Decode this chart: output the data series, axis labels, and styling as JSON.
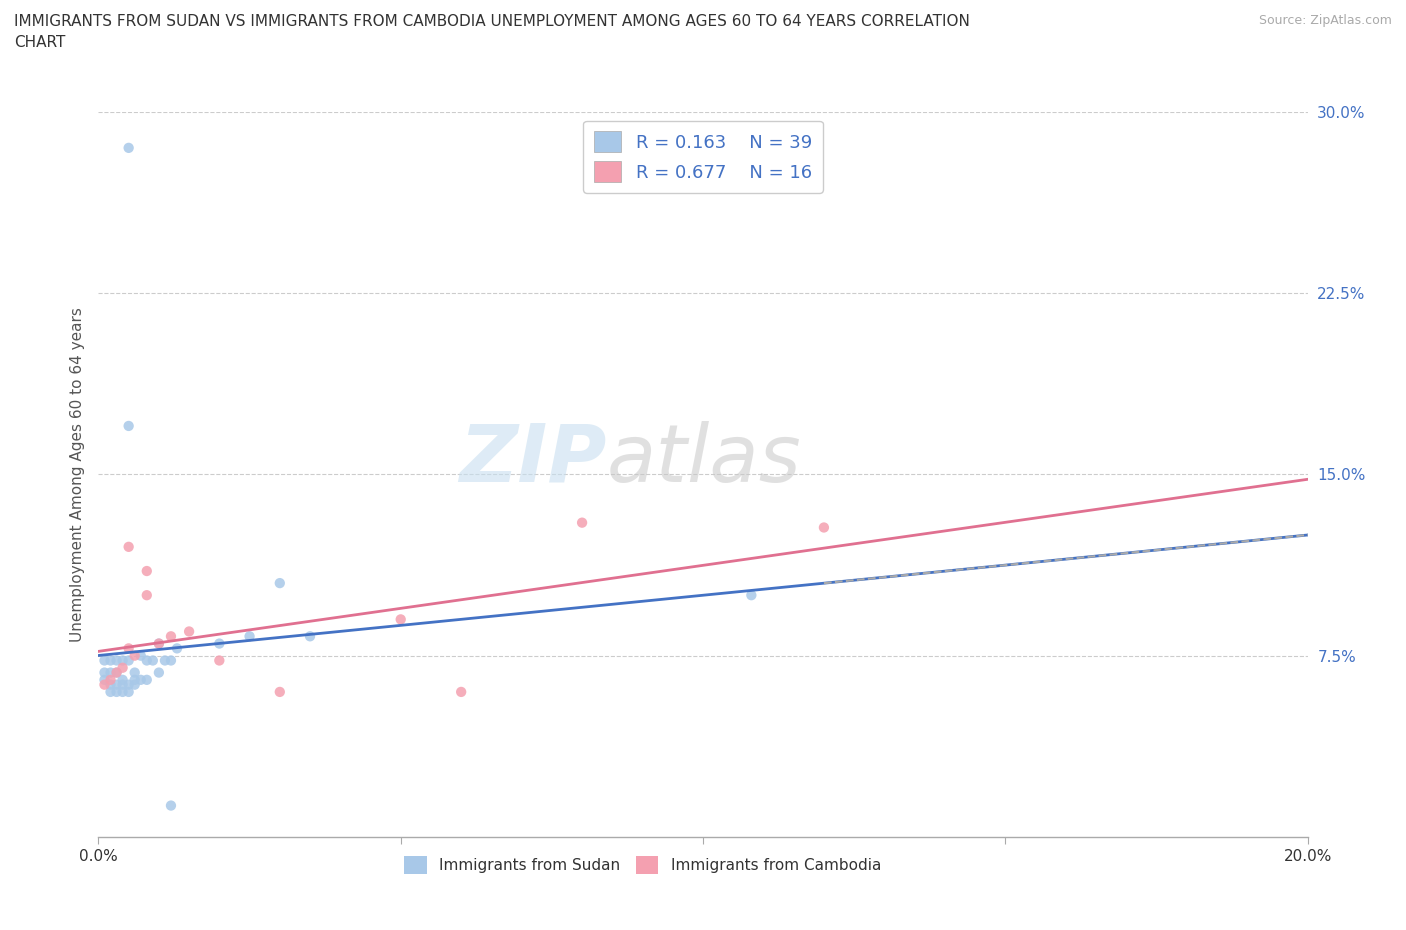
{
  "title_line1": "IMMIGRANTS FROM SUDAN VS IMMIGRANTS FROM CAMBODIA UNEMPLOYMENT AMONG AGES 60 TO 64 YEARS CORRELATION",
  "title_line2": "CHART",
  "source_text": "Source: ZipAtlas.com",
  "ylabel": "Unemployment Among Ages 60 to 64 years",
  "xlim": [
    0.0,
    0.2
  ],
  "ylim": [
    0.0,
    0.3
  ],
  "xticks": [
    0.0,
    0.05,
    0.1,
    0.15,
    0.2
  ],
  "yticks": [
    0.0,
    0.075,
    0.15,
    0.225,
    0.3
  ],
  "sudan_color": "#a8c8e8",
  "cambodia_color": "#f4a0b0",
  "sudan_line_color": "#4472c4",
  "cambodia_line_color": "#e07090",
  "sudan_dash_color": "#aaaaaa",
  "background_color": "#ffffff",
  "grid_color": "#cccccc",
  "sudan_x": [
    0.005,
    0.005,
    0.001,
    0.001,
    0.001,
    0.002,
    0.002,
    0.002,
    0.002,
    0.003,
    0.003,
    0.003,
    0.004,
    0.004,
    0.005,
    0.005,
    0.006,
    0.006,
    0.007,
    0.007,
    0.008,
    0.008,
    0.009,
    0.01,
    0.01,
    0.011,
    0.012,
    0.013,
    0.012,
    0.02,
    0.025,
    0.03,
    0.035,
    0.108,
    0.003,
    0.004,
    0.004,
    0.005,
    0.006
  ],
  "sudan_y": [
    0.285,
    0.17,
    0.065,
    0.068,
    0.073,
    0.06,
    0.063,
    0.068,
    0.073,
    0.063,
    0.068,
    0.073,
    0.06,
    0.065,
    0.063,
    0.073,
    0.063,
    0.068,
    0.065,
    0.075,
    0.065,
    0.073,
    0.073,
    0.068,
    0.08,
    0.073,
    0.073,
    0.078,
    0.013,
    0.08,
    0.083,
    0.105,
    0.083,
    0.1,
    0.06,
    0.063,
    0.073,
    0.06,
    0.065
  ],
  "cambodia_x": [
    0.001,
    0.002,
    0.003,
    0.004,
    0.005,
    0.006,
    0.008,
    0.01,
    0.012,
    0.015,
    0.02,
    0.03,
    0.05,
    0.06,
    0.08,
    0.12,
    0.005,
    0.008
  ],
  "cambodia_y": [
    0.063,
    0.065,
    0.068,
    0.07,
    0.078,
    0.075,
    0.11,
    0.08,
    0.083,
    0.085,
    0.073,
    0.06,
    0.09,
    0.06,
    0.13,
    0.128,
    0.12,
    0.1
  ]
}
